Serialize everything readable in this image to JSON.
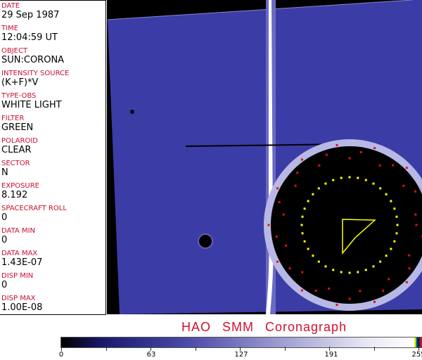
{
  "fields": [
    {
      "label": "DATE",
      "value": "29 Sep 1987"
    },
    {
      "label": "TIME",
      "value": "12:04:59 UT"
    },
    {
      "label": "OBJECT",
      "value": "SUN:CORONA"
    },
    {
      "label": "INTENSITY SOURCE",
      "value": "(K+F)*V"
    },
    {
      "label": "TYPE-OBS",
      "value": "WHITE LIGHT"
    },
    {
      "label": "FILTER",
      "value": "GREEN"
    },
    {
      "label": "POLAROID",
      "value": "CLEAR"
    },
    {
      "label": "SECTOR",
      "value": "N"
    },
    {
      "label": "EXPOSURE",
      "value": "8.192"
    },
    {
      "label": "SPACECRAFT ROLL",
      "value": "0"
    },
    {
      "label": "DATA MIN",
      "value": "0"
    },
    {
      "label": "DATA MAX",
      "value": "1.43E-07"
    },
    {
      "label": "DISP MIN",
      "value": "0"
    },
    {
      "label": "DISP MAX",
      "value": "1.00E-08"
    }
  ],
  "title": "HAO SMM Coronagraph",
  "colorbar": {
    "ticks": [
      "0",
      "63",
      "127",
      "191",
      "255"
    ],
    "colors": {
      "low": "#000000",
      "mid": "#4a4aa8",
      "high": "#ffffff"
    }
  }
}
